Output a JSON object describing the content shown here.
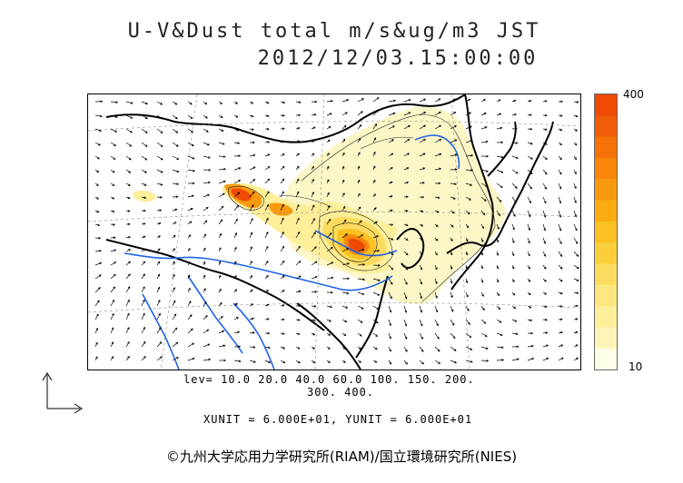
{
  "header": {
    "title_line1": "U-V&Dust total m/s&ug/m3 JST",
    "title_line2": "2012/12/03.15:00:00"
  },
  "colorbar": {
    "max_label": "400",
    "min_label": "10",
    "colors": [
      "#fefde8",
      "#fdf5b8",
      "#fdee9a",
      "#fce680",
      "#fcdb5e",
      "#fbcf3c",
      "#fbc122",
      "#faac12",
      "#f99a0e",
      "#f7860a",
      "#f47208",
      "#f15c06",
      "#ee4a04"
    ]
  },
  "legend": {
    "levels_line1": "lev= 10.0 20.0 40.0 60.0 100. 150. 200.",
    "levels_line2": "300. 400.",
    "units": "XUNIT = 6.000E+01, YUNIT = 6.000E+01"
  },
  "footer": {
    "copyright": "©九州大学応用力学研究所(RIAM)/国立環境研究所(NIES)"
  },
  "map": {
    "land_line_color": "#000000",
    "river_color": "#1e64e6",
    "vector_color": "#000000"
  }
}
